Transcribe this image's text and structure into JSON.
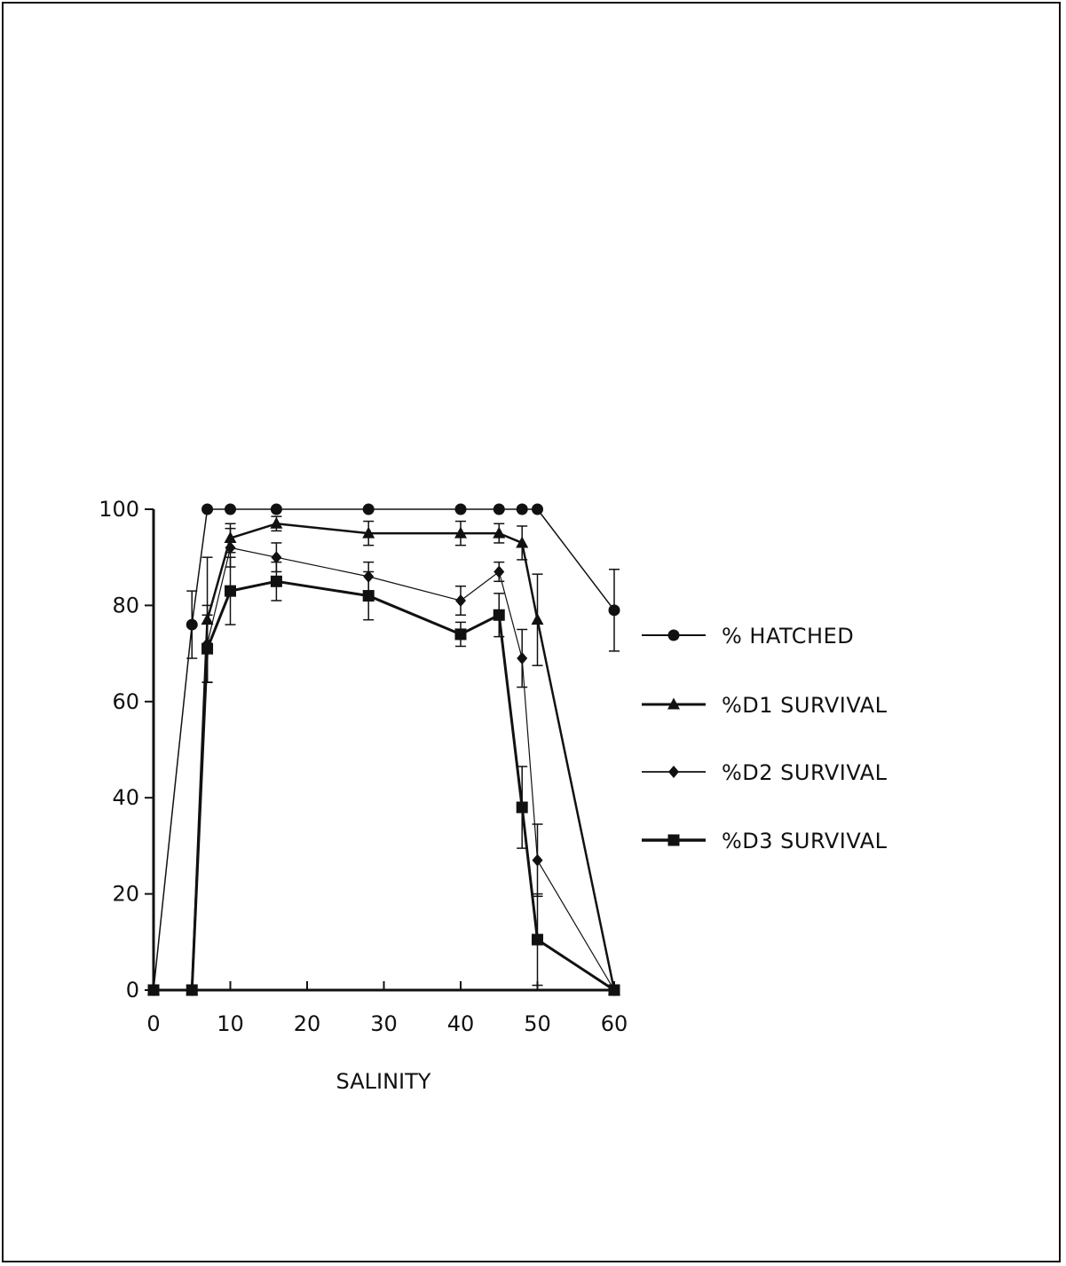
{
  "chart_data": {
    "type": "line",
    "title": "",
    "xlabel": "SALINITY",
    "ylabel": "",
    "xlim": [
      0,
      60
    ],
    "ylim": [
      0,
      100
    ],
    "x_ticks": [
      0,
      10,
      20,
      30,
      40,
      50,
      60
    ],
    "y_ticks": [
      0,
      20,
      40,
      60,
      80,
      100
    ],
    "grid": false,
    "legend_position": "right",
    "series": [
      {
        "name": "% HATCHED",
        "marker": "circle",
        "x": [
          0,
          5,
          7,
          10,
          16,
          28,
          40,
          45,
          48,
          50,
          60
        ],
        "y": [
          0,
          76,
          100,
          100,
          100,
          100,
          100,
          100,
          100,
          100,
          79
        ],
        "err": [
          0,
          7,
          0,
          0,
          0,
          0,
          0,
          0,
          0,
          0,
          8.5
        ]
      },
      {
        "name": "%D1 SURVIVAL",
        "marker": "triangle",
        "x": [
          0,
          5,
          7,
          10,
          16,
          28,
          40,
          45,
          48,
          50,
          60
        ],
        "y": [
          0,
          0,
          77,
          94,
          97,
          95,
          95,
          95,
          93,
          77,
          0
        ],
        "err": [
          0,
          0,
          13,
          3,
          1.5,
          2.5,
          2.5,
          2,
          3.5,
          9.5,
          0
        ]
      },
      {
        "name": "%D2 SURVIVAL",
        "marker": "diamond",
        "x": [
          0,
          5,
          7,
          10,
          16,
          28,
          40,
          45,
          48,
          50,
          60
        ],
        "y": [
          0,
          0,
          72,
          92,
          90,
          86,
          81,
          87,
          69,
          27,
          0
        ],
        "err": [
          0,
          0,
          8,
          4,
          3,
          3,
          3,
          2,
          6,
          7.5,
          0
        ]
      },
      {
        "name": "%D3 SURVIVAL",
        "marker": "square",
        "x": [
          0,
          5,
          7,
          10,
          16,
          28,
          40,
          45,
          48,
          50,
          60
        ],
        "y": [
          0,
          0,
          71,
          83,
          85,
          82,
          74,
          78,
          38,
          10.5,
          0
        ],
        "err": [
          0,
          0,
          7,
          7,
          4,
          5,
          2.5,
          4.5,
          8.5,
          9.5,
          0
        ]
      }
    ]
  }
}
